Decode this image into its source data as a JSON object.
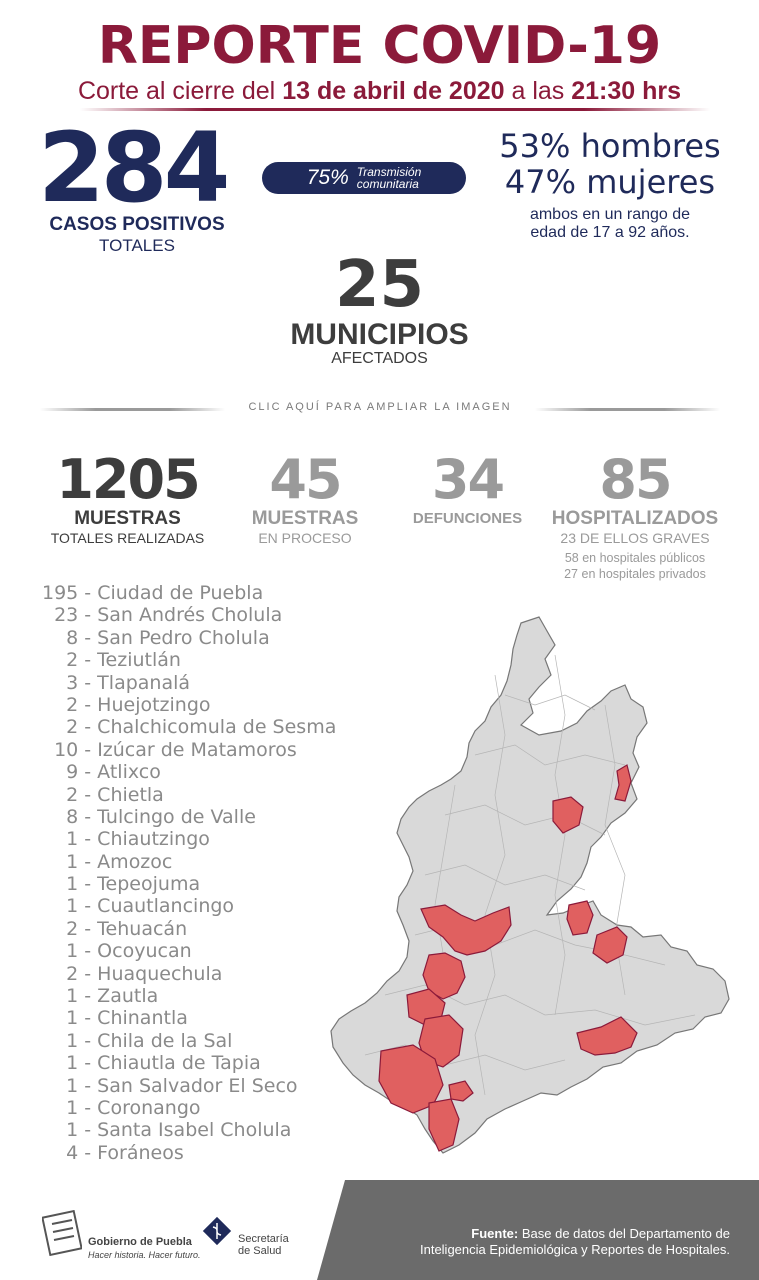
{
  "header": {
    "title": "REPORTE COVID-19",
    "subtitle_pre": "Corte al cierre del ",
    "subtitle_date": "13 de abril de 2020",
    "subtitle_mid": " a las ",
    "subtitle_time": "21:30 hrs"
  },
  "cases": {
    "total": "284",
    "label1": "CASOS POSITIVOS",
    "label2": "TOTALES"
  },
  "transmission": {
    "pct": "75%",
    "label1": "Transmisión",
    "label2": "comunitaria"
  },
  "gender": {
    "men": "53% hombres",
    "women": "47% mujeres",
    "range1": "ambos en un rango de",
    "range2": "edad de 17 a 92 años."
  },
  "municipalities": {
    "count": "25",
    "label1": "MUNICIPIOS",
    "label2": "AFECTADOS"
  },
  "click_label": "CLIC AQUÍ PARA AMPLIAR LA IMAGEN",
  "stats": {
    "samples": {
      "n": "1205",
      "l1": "MUESTRAS",
      "l2": "TOTALES REALIZADAS"
    },
    "pending": {
      "n": "45",
      "l1": "MUESTRAS",
      "l2": "EN PROCESO"
    },
    "deaths": {
      "n": "34",
      "l1": "DEFUNCIONES"
    },
    "hospital": {
      "n": "85",
      "l1": "HOSPITALIZADOS",
      "l2": "23 DE ELLOS GRAVES",
      "l3": "58 en hospitales públicos",
      "l4": "27 en hospitales privados"
    }
  },
  "list": [
    "195 - Ciudad de Puebla",
    "  23 - San Andrés Cholula",
    "    8 - San Pedro Cholula",
    "    2 - Teziutlán",
    "    3 - Tlapanalá",
    "    2 - Huejotzingo",
    "    2 - Chalchicomula de Sesma",
    "  10 - Izúcar de Matamoros",
    "    9 - Atlixco",
    "    2 - Chietla",
    "    8 - Tulcingo de Valle",
    "    1 - Chiautzingo",
    "    1 - Amozoc",
    "    1 - Tepeojuma",
    "    1 - Cuautlancingo",
    "    2 - Tehuacán",
    "    1 - Ocoyucan",
    "    2 - Huaquechula",
    "    1 - Zautla",
    "    1 - Chinantla",
    "    1 - Chila de la Sal",
    "    1 - Chiautla de Tapia",
    "    1 - San Salvador El Seco",
    "    1 - Coronango",
    "    1 - Santa Isabel Cholula",
    "    4 - Foráneos"
  ],
  "footer": {
    "gov_name": "Gobierno de Puebla",
    "gov_slogan": "Hacer historia. Hacer futuro.",
    "health1": "Secretaría",
    "health2": "de Salud",
    "source_label": "Fuente:",
    "source_text1": " Base de datos del Departamento de",
    "source_text2": "Inteligencia Epidemiológica y Reportes de Hospitales."
  },
  "colors": {
    "maroon": "#8b1a3a",
    "navy": "#1f2a5a",
    "dark_gray": "#3d3d3d",
    "mid_gray": "#9a9a9a",
    "map_red": "#e06060",
    "map_gray": "#d9d9d9"
  }
}
